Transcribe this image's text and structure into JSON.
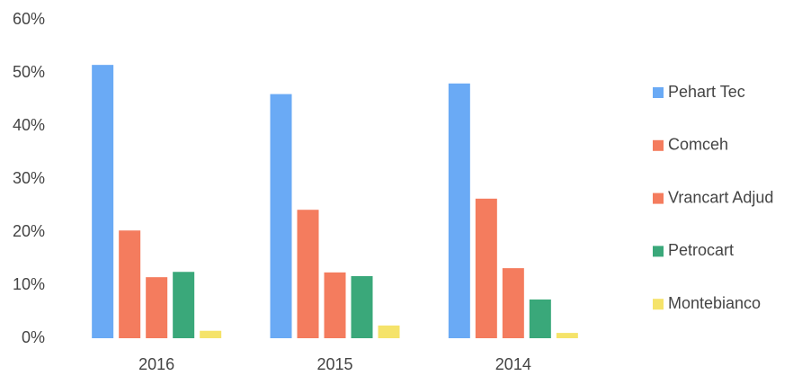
{
  "chart_data": {
    "type": "bar",
    "categories": [
      "2016",
      "2015",
      "2014"
    ],
    "series": [
      {
        "name": "Pehart Tec",
        "color": "#6aaaf5",
        "values": [
          51.5,
          46,
          48
        ]
      },
      {
        "name": "Comceh",
        "color": "#f47c5e",
        "values": [
          20.3,
          24.2,
          26.3
        ]
      },
      {
        "name": "Vrancart Adjud",
        "color": "#f47c5e",
        "values": [
          11.5,
          12.4,
          13.2
        ]
      },
      {
        "name": "Petrocart",
        "color": "#3aa87a",
        "values": [
          12.5,
          11.7,
          7.3
        ]
      },
      {
        "name": "Montebianco",
        "color": "#f5e36a",
        "values": [
          1.4,
          2.4,
          1
        ]
      }
    ],
    "ylim": [
      0,
      60
    ],
    "yticks": [
      {
        "value": 0,
        "label": "0%"
      },
      {
        "value": 10,
        "label": "10%"
      },
      {
        "value": 20,
        "label": "20%"
      },
      {
        "value": 30,
        "label": "30%"
      },
      {
        "value": 40,
        "label": "40%"
      },
      {
        "value": 50,
        "label": "50%"
      },
      {
        "value": 60,
        "label": "60%"
      }
    ],
    "grid": false,
    "legend": "right"
  }
}
